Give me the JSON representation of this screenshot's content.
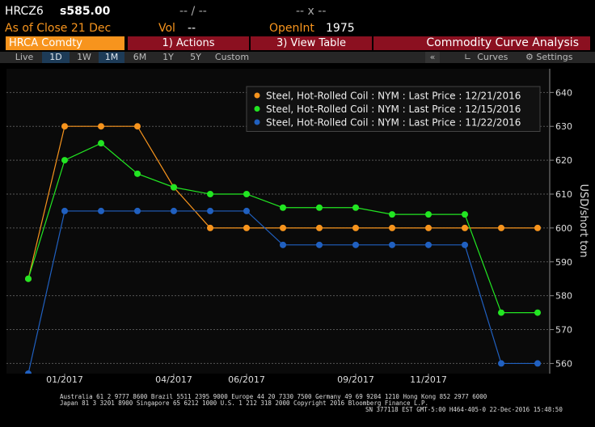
{
  "header": {
    "ticker": "HRCZ6",
    "price": "s585.00",
    "change": "-- / --",
    "bidask": "-- x --",
    "as_of": "As of Close 21 Dec",
    "vol_label": "Vol",
    "vol": "--",
    "openint_label": "OpenInt",
    "openint": "1975"
  },
  "toolbar": {
    "security": "HRCA Comdty",
    "actions": "1) Actions",
    "view": "3) View Table",
    "title": "Commodity Curve Analysis"
  },
  "tabs": [
    "Live",
    "1D",
    "1W",
    "1M",
    "6M",
    "1Y",
    "5Y",
    "Custom"
  ],
  "side": {
    "collapse": "«",
    "curves": "Curves",
    "settings": "Settings"
  },
  "chart_data": {
    "type": "line",
    "y_label": "USD/short ton",
    "categories": [
      null,
      "01/2017",
      null,
      null,
      "04/2017",
      null,
      "06/2017",
      null,
      null,
      "09/2017",
      null,
      "11/2017",
      null,
      null,
      null
    ],
    "series": [
      {
        "name": "Steel, Hot-Rolled Coil : NYM : Last Price : 12/21/2016",
        "color": "#f7941d",
        "values": [
          585,
          630,
          630,
          630,
          612,
          600,
          600,
          600,
          600,
          600,
          600,
          600,
          600,
          600,
          600
        ]
      },
      {
        "name": "Steel, Hot-Rolled Coil : NYM : Last Price : 12/15/2016",
        "color": "#22e622",
        "values": [
          585,
          620,
          625,
          616,
          612,
          610,
          610,
          606,
          606,
          606,
          604,
          604,
          604,
          575,
          575
        ]
      },
      {
        "name": "Steel, Hot-Rolled Coil : NYM : Last Price : 11/22/2016",
        "color": "#2060c0",
        "values": [
          557,
          605,
          605,
          605,
          605,
          605,
          605,
          595,
          595,
          595,
          595,
          595,
          595,
          560,
          560
        ]
      }
    ],
    "ylim": [
      557,
      647
    ],
    "yticks": [
      560,
      570,
      580,
      590,
      600,
      610,
      620,
      630,
      640
    ],
    "grid": true,
    "legend": "top-right"
  },
  "footer": [
    "Australia 61 2 9777 8600 Brazil 5511 2395 9000 Europe 44 20 7330 7500 Germany 49 69 9204 1210 Hong Kong 852 2977 6000",
    "Japan 81 3 3201 8900       Singapore 65 6212 1000       U.S. 1 212 318 2000       Copyright 2016 Bloomberg Finance L.P.",
    "SN 377118 EST  GMT-5:00 H464-405-0 22-Dec-2016 15:48:50"
  ]
}
